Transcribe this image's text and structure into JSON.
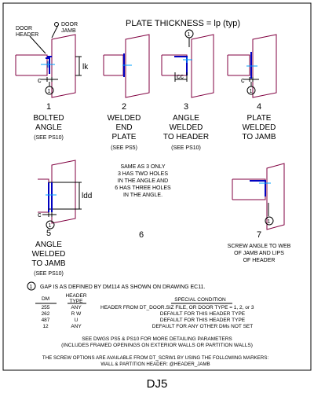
{
  "header": {
    "plate_thickness": "PLATE THICKNESS = lp (typ)",
    "door_header": "DOOR\nHEADER",
    "door_jamb": "DOOR\nJAMB"
  },
  "colors": {
    "frame": "#800040",
    "plate": "#0000c0",
    "screw": "#00a0ff",
    "line": "#000000"
  },
  "details": [
    {
      "number": "1",
      "title": [
        "BOLTED",
        "ANGLE"
      ],
      "ref": "(SEE PS10)",
      "dims": [
        "lk",
        "c"
      ]
    },
    {
      "number": "2",
      "title": [
        "WELDED",
        "END",
        "PLATE"
      ],
      "ref": "(SEE PS5)",
      "dims": []
    },
    {
      "number": "3",
      "title": [
        "ANGLE",
        "WELDED",
        "TO HEADER"
      ],
      "ref": "(SEE PS10)",
      "dims": [
        "cc"
      ]
    },
    {
      "number": "4",
      "title": [
        "PLATE",
        "WELDED",
        "TO JAMB"
      ],
      "ref": "",
      "dims": [
        "c"
      ]
    },
    {
      "number": "5",
      "title": [
        "ANGLE",
        "WELDED",
        "TO JAMB"
      ],
      "ref": "(SEE PS10)",
      "dims": [
        "ldd",
        "c"
      ]
    },
    {
      "number": "6",
      "title": [],
      "ref": "",
      "note": [
        "SAME AS 3 ONLY",
        "3 HAS TWO HOLES",
        "IN THE ANGLE AND",
        "6 HAS THREE HOLES",
        "IN THE ANGLE."
      ]
    },
    {
      "number": "7",
      "title": [
        "SCREW ANGLE TO WEB",
        "OF JAMB AND LIPS",
        "OF HEADER"
      ],
      "ref": ""
    }
  ],
  "gap_symbol": "1",
  "gap_note": "GAP IS AS DEFINED BY DM114 AS SHOWN ON DRAWING EC11.",
  "table": {
    "headers": [
      "DM",
      "HEADER TYPE",
      "SPECIAL CONDITION"
    ],
    "rows": [
      [
        "255",
        "ANY",
        "HEADER FROM DT_DOOR.SIZ FILE, OR DOOR TYPE = 1, 2, or 3"
      ],
      [
        "262",
        "R W",
        "DEFAULT FOR THIS HEADER TYPE"
      ],
      [
        "487",
        "U",
        "DEFAULT FOR THIS HEADER TYPE"
      ],
      [
        "12",
        "ANY",
        "DEFAULT FOR ANY OTHER DMs NOT SET"
      ]
    ]
  },
  "see_note": [
    "SEE DWGS PS5 & PS10 FOR MORE DETAILING PARAMETERS",
    "(INCLUDES FRAMED OPENINGS ON EXTERIOR WALLS OR PARTITION WALLS)"
  ],
  "screw_note": [
    "THE SCREW OPTIONS ARE AVAILABLE FROM DT_SCRW1 BY USING THE FOLLOWING MARKERS:",
    "WALL & PARTITION HEADER: @HEADER_JAMB"
  ],
  "drawing_id": "DJ5"
}
